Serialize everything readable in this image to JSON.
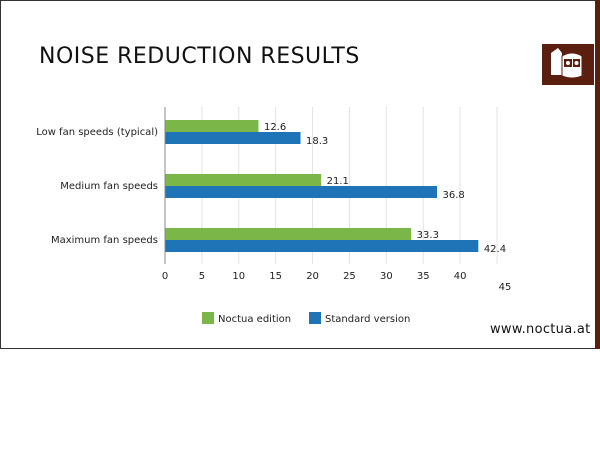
{
  "header": {
    "title": "NOISE REDUCTION RESULTS"
  },
  "footer": {
    "url": "www.noctua.at"
  },
  "logo": {
    "icon": "owl-logo-icon"
  },
  "colors": {
    "accent": "#5b1f10",
    "noctua": "#7ab648",
    "standard": "#1f73b7"
  },
  "chart_data": {
    "type": "bar",
    "orientation": "horizontal",
    "categories": [
      "Low fan speeds (typical)",
      "Medium fan speeds",
      "Maximum fan speeds"
    ],
    "series": [
      {
        "name": "Noctua edition",
        "color": "#7ab648",
        "values": [
          12.6,
          21.1,
          33.3
        ],
        "labels": [
          "12.6",
          "21.1",
          "33.3"
        ]
      },
      {
        "name": "Standard version",
        "color": "#1f73b7",
        "values": [
          18.3,
          36.8,
          42.4
        ],
        "labels": [
          "18.3",
          "36.8",
          "42.4"
        ]
      }
    ],
    "xticks": [
      "0",
      "5",
      "10",
      "15",
      "20",
      "25",
      "30",
      "35",
      "40",
      "45"
    ],
    "xlim": [
      0,
      45
    ],
    "grid": true,
    "legend": "bottom"
  }
}
